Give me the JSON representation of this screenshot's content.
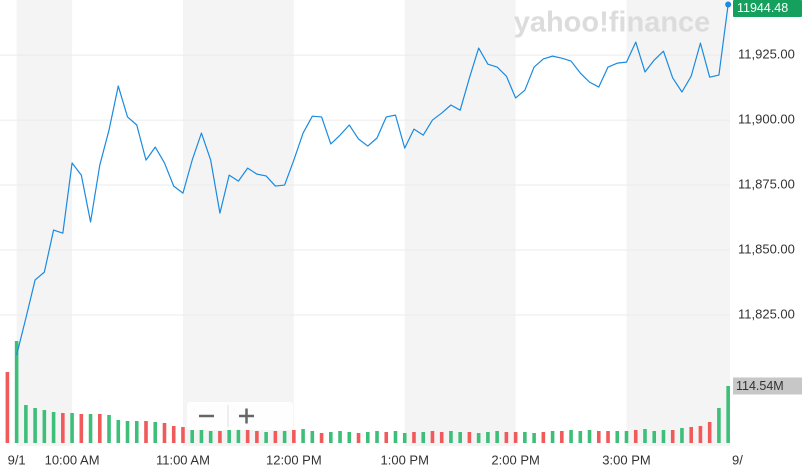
{
  "chart_data": {
    "type": "line",
    "watermark": "yahoo!finance",
    "xlim": [
      561,
      956
    ],
    "xticks": [
      {
        "value": 570,
        "label": "9/1"
      },
      {
        "value": 600,
        "label": "10:00 AM"
      },
      {
        "value": 660,
        "label": "11:00 AM"
      },
      {
        "value": 720,
        "label": "12:00 PM"
      },
      {
        "value": 780,
        "label": "1:00 PM"
      },
      {
        "value": 840,
        "label": "2:00 PM"
      },
      {
        "value": 900,
        "label": "3:00 PM"
      },
      {
        "value": 960,
        "label": "9/"
      }
    ],
    "ylim": [
      11800,
      11946
    ],
    "yticks": [
      {
        "value": 11825,
        "label": "11,825.00"
      },
      {
        "value": 11850,
        "label": "11,850.00"
      },
      {
        "value": 11875,
        "label": "11,875.00"
      },
      {
        "value": 11900,
        "label": "11,900.00"
      },
      {
        "value": 11925,
        "label": "11,925.00"
      }
    ],
    "y2lim": [
      0,
      220
    ],
    "grid": true,
    "series": [
      {
        "color": "#1a8be0",
        "x": [
          570,
          575,
          580,
          585,
          590,
          595,
          600,
          605,
          610,
          615,
          620,
          625,
          630,
          635,
          640,
          645,
          650,
          655,
          660,
          665,
          670,
          675,
          680,
          685,
          690,
          695,
          700,
          705,
          710,
          715,
          720,
          725,
          730,
          735,
          740,
          745,
          750,
          755,
          760,
          765,
          770,
          775,
          780,
          785,
          790,
          795,
          800,
          805,
          810,
          815,
          820,
          825,
          830,
          835,
          840,
          845,
          850,
          855,
          860,
          865,
          870,
          875,
          880,
          885,
          890,
          895,
          900,
          905,
          910,
          915,
          920,
          925,
          930,
          935,
          940,
          945,
          950,
          955
        ],
        "values": [
          11809.6,
          11823.8,
          11838.5,
          11841.5,
          11857.7,
          11856.5,
          11883.5,
          11878.8,
          11860.8,
          11882.7,
          11896.2,
          11913.1,
          11901.2,
          11898.1,
          11884.6,
          11889.6,
          11883.5,
          11874.6,
          11871.9,
          11884.6,
          11895,
          11884.6,
          11864.2,
          11878.8,
          11876.5,
          11881.5,
          11879.2,
          11878.5,
          11874.6,
          11875,
          11884.6,
          11895,
          11901.5,
          11901.2,
          11890.8,
          11894.2,
          11898.1,
          11892.7,
          11890,
          11893.1,
          11901.2,
          11901.9,
          11889.2,
          11896.5,
          11894.2,
          11900,
          11902.7,
          11905.8,
          11903.8,
          11916.2,
          11927.7,
          11921.5,
          11920.4,
          11916.9,
          11908.5,
          11911.5,
          11920.4,
          11923.5,
          11924.6,
          11923.8,
          11922.7,
          11918.1,
          11914.6,
          11912.7,
          11920.4,
          11921.9,
          11922.3,
          11930,
          11918.5,
          11923.1,
          11926.5,
          11916.2,
          11910.8,
          11916.9,
          11929.6,
          11916.5,
          11917.3,
          11944.48
        ]
      },
      {
        "type": "bar",
        "axis": "y2",
        "last_value_label": "114.54M",
        "x": [
          565,
          570,
          575,
          580,
          585,
          590,
          595,
          600,
          605,
          610,
          615,
          620,
          625,
          630,
          635,
          640,
          645,
          650,
          655,
          660,
          665,
          670,
          675,
          680,
          685,
          690,
          695,
          700,
          705,
          710,
          715,
          720,
          725,
          730,
          735,
          740,
          745,
          750,
          755,
          760,
          765,
          770,
          775,
          780,
          785,
          790,
          795,
          800,
          805,
          810,
          815,
          820,
          825,
          830,
          835,
          840,
          845,
          850,
          855,
          860,
          865,
          870,
          875,
          880,
          885,
          890,
          895,
          900,
          905,
          910,
          915,
          920,
          925,
          930,
          935,
          940,
          945,
          950,
          955
        ],
        "values": [
          142.7,
          204.9,
          76.3,
          70.3,
          66.3,
          62.3,
          60.3,
          60.3,
          58.3,
          58.3,
          58.3,
          56.3,
          46.2,
          44.2,
          44.2,
          44.2,
          42.2,
          40.2,
          34.2,
          32.1,
          26.1,
          26.1,
          24.1,
          24.1,
          26.1,
          28.1,
          26.1,
          24.1,
          22.1,
          24.1,
          24.1,
          26.1,
          28.1,
          24.1,
          20.1,
          22.1,
          24.1,
          22.1,
          20.1,
          22.1,
          24.1,
          22.1,
          24.1,
          20.1,
          22.1,
          22.1,
          24.1,
          22.1,
          24.1,
          22.1,
          22.1,
          20.1,
          22.1,
          24.1,
          22.1,
          22.1,
          22.1,
          20.1,
          22.1,
          24.1,
          24.1,
          26.1,
          24.1,
          26.1,
          24.1,
          24.1,
          24.1,
          24.1,
          26.1,
          28.1,
          24.1,
          26.1,
          26.1,
          30.1,
          32.1,
          34.2,
          42.2,
          70.3,
          114.54
        ],
        "colors": [
          "#f05a5a",
          "#3dbf7a",
          "#3dbf7a",
          "#3dbf7a",
          "#3dbf7a",
          "#3dbf7a",
          "#f05a5a",
          "#3dbf7a",
          "#f05a5a",
          "#3dbf7a",
          "#f05a5a",
          "#3dbf7a",
          "#3dbf7a",
          "#3dbf7a",
          "#3dbf7a",
          "#f05a5a",
          "#3dbf7a",
          "#f05a5a",
          "#f05a5a",
          "#f05a5a",
          "#3dbf7a",
          "#3dbf7a",
          "#3dbf7a",
          "#f05a5a",
          "#3dbf7a",
          "#3dbf7a",
          "#f05a5a",
          "#f05a5a",
          "#3dbf7a",
          "#f05a5a",
          "#3dbf7a",
          "#f05a5a",
          "#3dbf7a",
          "#3dbf7a",
          "#f05a5a",
          "#3dbf7a",
          "#3dbf7a",
          "#3dbf7a",
          "#f05a5a",
          "#3dbf7a",
          "#3dbf7a",
          "#f05a5a",
          "#3dbf7a",
          "#3dbf7a",
          "#f05a5a",
          "#3dbf7a",
          "#f05a5a",
          "#f05a5a",
          "#3dbf7a",
          "#3dbf7a",
          "#f05a5a",
          "#3dbf7a",
          "#3dbf7a",
          "#3dbf7a",
          "#f05a5a",
          "#f05a5a",
          "#3dbf7a",
          "#3dbf7a",
          "#f05a5a",
          "#3dbf7a",
          "#f05a5a",
          "#3dbf7a",
          "#3dbf7a",
          "#3dbf7a",
          "#f05a5a",
          "#f05a5a",
          "#3dbf7a",
          "#3dbf7a",
          "#f05a5a",
          "#3dbf7a",
          "#3dbf7a",
          "#3dbf7a",
          "#f05a5a",
          "#3dbf7a",
          "#f05a5a",
          "#f05a5a",
          "#f05a5a",
          "#3dbf7a",
          "#3dbf7a"
        ]
      }
    ]
  }
}
